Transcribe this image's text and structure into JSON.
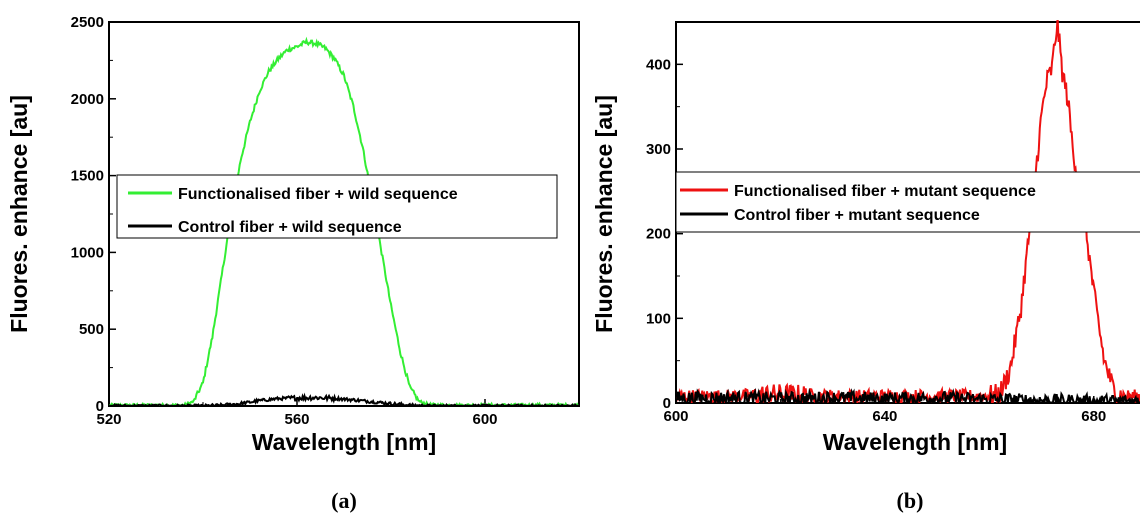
{
  "chart_data": [
    {
      "type": "line",
      "panel_label": "(a)",
      "xlabel": "Wavelength [nm]",
      "ylabel": "Fluores. enhance [au]",
      "xlim": [
        520,
        620
      ],
      "ylim": [
        0,
        2500
      ],
      "xticks": [
        520,
        560,
        600
      ],
      "yticks": [
        0,
        500,
        1000,
        1500,
        2000,
        2500
      ],
      "legend_position": "middle-left",
      "series": [
        {
          "name": "Functionalised fiber + wild sequence",
          "color": "#33ee33",
          "x": [
            520,
            526,
            532,
            536,
            538,
            540,
            542,
            544,
            546,
            548,
            550,
            552,
            554,
            556,
            558,
            560,
            562,
            564,
            566,
            568,
            570,
            572,
            574,
            576,
            578,
            580,
            582,
            584,
            586,
            588,
            592,
            600,
            610,
            620
          ],
          "y": [
            5,
            5,
            5,
            5,
            30,
            150,
            450,
            850,
            1250,
            1600,
            1850,
            2050,
            2180,
            2260,
            2320,
            2340,
            2370,
            2360,
            2330,
            2260,
            2150,
            1950,
            1680,
            1350,
            1000,
            650,
            350,
            120,
            30,
            8,
            5,
            5,
            5,
            5
          ]
        },
        {
          "name": "Control fiber + wild sequence",
          "color": "#000000",
          "x": [
            520,
            540,
            544,
            548,
            552,
            556,
            560,
            564,
            568,
            572,
            576,
            580,
            584,
            588,
            600,
            620
          ],
          "y": [
            0,
            0,
            5,
            15,
            35,
            48,
            52,
            55,
            50,
            40,
            28,
            15,
            5,
            0,
            0,
            0
          ]
        }
      ]
    },
    {
      "type": "line",
      "panel_label": "(b)",
      "xlabel": "Wavelength [nm]",
      "ylabel": "Fluores. enhance [au]",
      "xlim": [
        600,
        690
      ],
      "ylim": [
        0,
        450
      ],
      "xticks": [
        600,
        640,
        680
      ],
      "yticks": [
        0,
        100,
        200,
        300,
        400
      ],
      "legend_position": "upper-right",
      "series": [
        {
          "name": "Functionalised fiber + mutant sequence",
          "color": "#ee1111",
          "x": [
            600,
            610,
            620,
            630,
            640,
            650,
            658,
            662,
            664,
            666,
            668,
            670,
            671,
            672,
            673,
            674,
            675,
            676,
            678,
            680,
            682,
            684,
            686,
            690
          ],
          "y": [
            8,
            8,
            10,
            8,
            8,
            8,
            8,
            10,
            40,
            110,
            220,
            340,
            380,
            395,
            450,
            390,
            360,
            300,
            230,
            130,
            50,
            12,
            8,
            8
          ]
        },
        {
          "name": "Control fiber + mutant sequence",
          "color": "#000000",
          "x": [
            600,
            610,
            620,
            630,
            640,
            650,
            660,
            670,
            680,
            690
          ],
          "y": [
            6,
            6,
            5,
            6,
            5,
            6,
            4,
            3,
            2,
            2
          ]
        }
      ]
    }
  ]
}
